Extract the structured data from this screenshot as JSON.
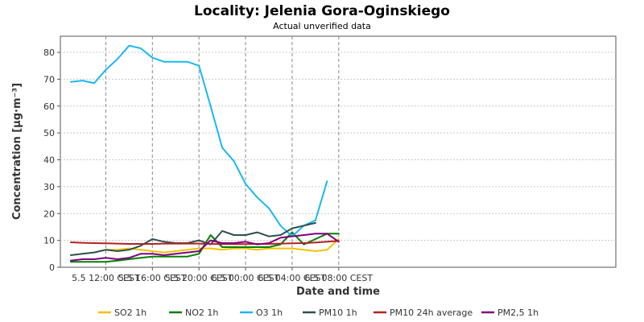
{
  "chart_data": {
    "type": "line",
    "title": "Locality: Jelenia Gora-Oginskiego",
    "subtitle": "Actual unverified data",
    "xlabel": "Date and time",
    "ylabel": "Concentration [µg·m⁻³]",
    "ylim": [
      0,
      86
    ],
    "yticks": [
      0,
      10,
      20,
      30,
      40,
      50,
      60,
      70,
      80
    ],
    "x": [
      "5.5 09:00",
      "5.5 10:00",
      "5.5 11:00",
      "5.5 12:00",
      "5.5 13:00",
      "5.5 14:00",
      "5.5 15:00",
      "5.5 16:00",
      "5.5 17:00",
      "5.5 18:00",
      "5.5 19:00",
      "5.5 20:00",
      "5.5 21:00",
      "5.5 22:00",
      "5.5 23:00",
      "6.5 00:00",
      "6.5 01:00",
      "6.5 02:00",
      "6.5 03:00",
      "6.5 04:00",
      "6.5 05:00",
      "6.5 06:00",
      "6.5 07:00",
      "6.5 08:00"
    ],
    "xticks": [
      {
        "index": 3,
        "label": "5.5 12:00 CEST"
      },
      {
        "index": 7,
        "label": "5.5 16:00 CEST"
      },
      {
        "index": 11,
        "label": "5.5 20:00 CEST"
      },
      {
        "index": 15,
        "label": "6.5 00:00 CEST"
      },
      {
        "index": 19,
        "label": "6.5 04:00 CEST"
      },
      {
        "index": 23,
        "label": "6.5 08:00 CEST"
      }
    ],
    "grid": true,
    "legend_position": "bottom",
    "series": [
      {
        "name": "SO2 1h",
        "color": "#f2c200",
        "values": [
          null,
          null,
          null,
          6.5,
          6.5,
          7.0,
          6.5,
          6.0,
          5.5,
          6.0,
          6.5,
          7.0,
          7.0,
          6.5,
          7.0,
          7.0,
          6.5,
          7.0,
          7.0,
          7.0,
          6.5,
          6.0,
          6.5,
          10.5
        ]
      },
      {
        "name": "NO2 1h",
        "color": "#008000",
        "values": [
          2.0,
          2.0,
          2.0,
          2.0,
          2.5,
          3.0,
          3.5,
          4.0,
          4.0,
          4.0,
          4.0,
          5.0,
          12.0,
          7.5,
          7.5,
          7.5,
          7.5,
          7.5,
          8.5,
          13.0,
          8.5,
          10.5,
          12.5,
          12.5
        ]
      },
      {
        "name": "O3 1h",
        "color": "#1ab8f0",
        "values": [
          69.0,
          69.5,
          68.5,
          73.5,
          77.5,
          82.5,
          81.5,
          78.0,
          76.5,
          76.5,
          76.5,
          75.0,
          60.0,
          44.5,
          39.5,
          31.0,
          26.0,
          22.0,
          15.5,
          11.5,
          15.5,
          17.5,
          32.0,
          null
        ]
      },
      {
        "name": "PM10 1h",
        "color": "#2f4f4f",
        "values": [
          4.5,
          5.0,
          5.5,
          6.5,
          6.0,
          6.5,
          8.0,
          10.5,
          9.5,
          9.0,
          9.0,
          10.0,
          8.5,
          13.5,
          12.0,
          12.0,
          13.0,
          11.5,
          12.0,
          14.5,
          15.5,
          16.5,
          null,
          null
        ]
      },
      {
        "name": "PM10 24h average",
        "color": "#b22222",
        "values": [
          9.3,
          9.1,
          9.0,
          8.9,
          8.8,
          8.7,
          8.7,
          8.7,
          8.8,
          8.8,
          8.8,
          8.8,
          8.7,
          8.6,
          8.6,
          8.6,
          8.7,
          8.7,
          8.8,
          8.9,
          9.0,
          9.2,
          9.5,
          9.8
        ]
      },
      {
        "name": "PM2,5 1h",
        "color": "#800080",
        "values": [
          2.5,
          3.0,
          3.0,
          3.5,
          3.0,
          3.5,
          5.0,
          5.0,
          4.5,
          5.0,
          5.5,
          6.0,
          10.0,
          9.0,
          9.0,
          9.5,
          8.5,
          9.0,
          11.0,
          11.5,
          12.0,
          12.5,
          12.5,
          9.5
        ]
      }
    ]
  }
}
